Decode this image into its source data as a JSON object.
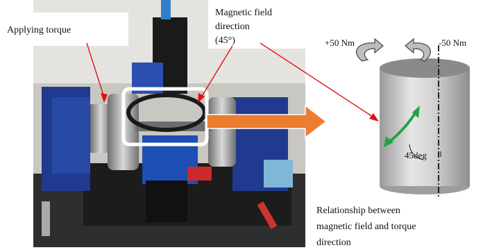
{
  "labels": {
    "applying_torque": "Applying torque",
    "magnetic_field": [
      "Magnetic field",
      "direction",
      "(45°)"
    ],
    "positive_torque": "+50 Nm",
    "negative_torque": "-50 Nm",
    "angle": "45deg",
    "caption": [
      "Relationship between",
      "magnetic field and torque",
      "direction"
    ]
  }
}
